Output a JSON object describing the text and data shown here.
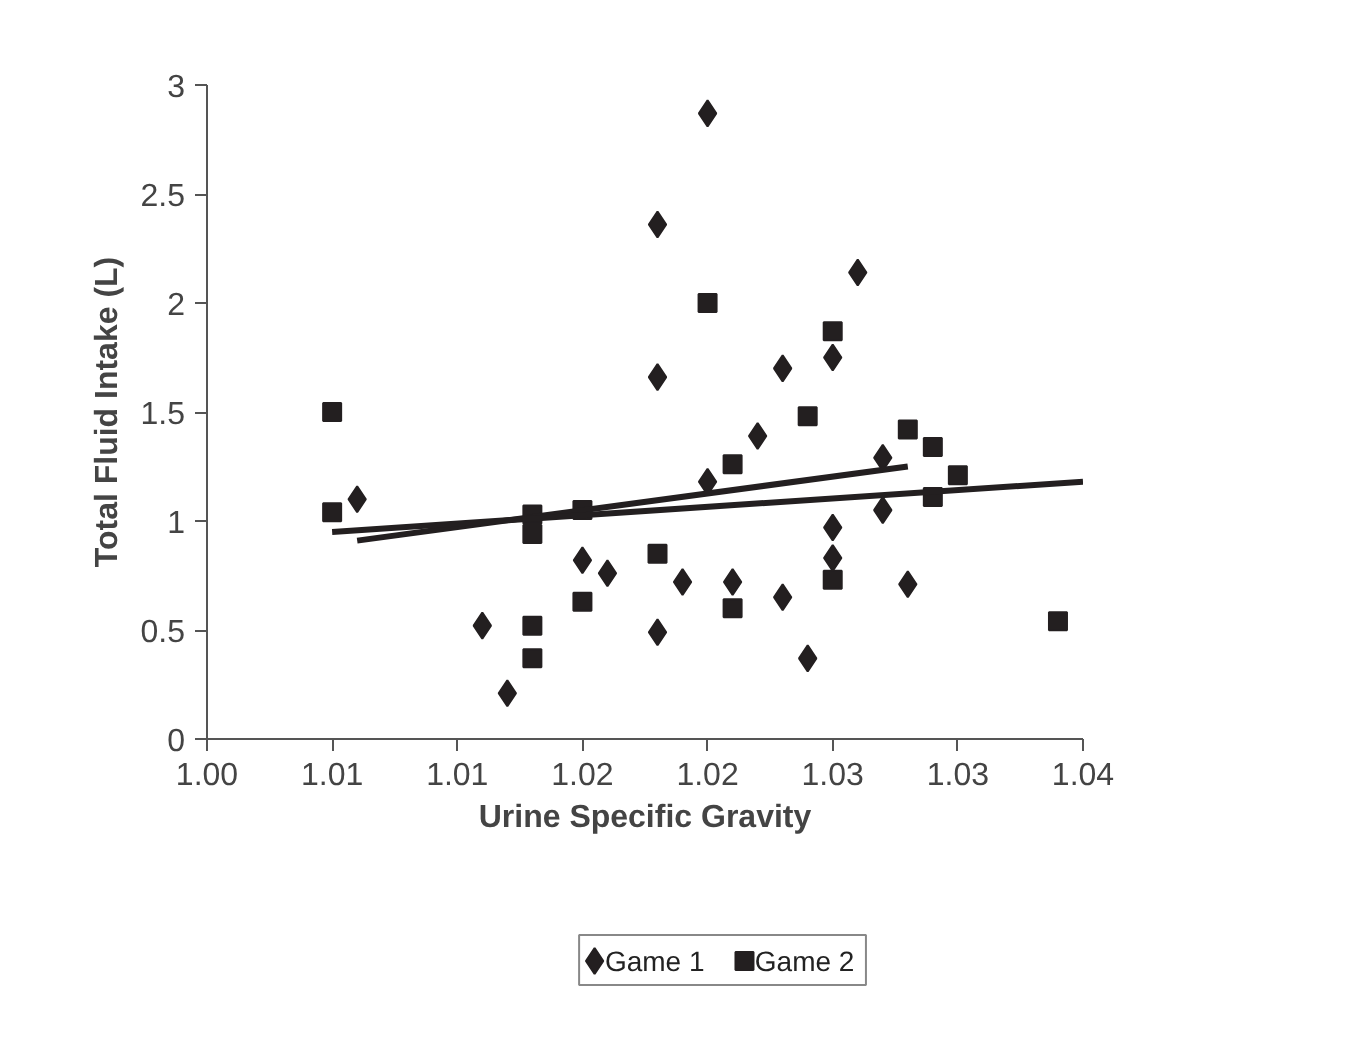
{
  "chart_data": {
    "type": "scatter",
    "xlabel": "Urine Specific Gravity",
    "ylabel": "Total Fluid Intake (L)",
    "xlim": [
      1.0,
      1.035
    ],
    "ylim": [
      0,
      3
    ],
    "xticks": [
      {
        "value": 1.0,
        "label": "1.00"
      },
      {
        "value": 1.005,
        "label": "1.01"
      },
      {
        "value": 1.01,
        "label": "1.01"
      },
      {
        "value": 1.015,
        "label": "1.02"
      },
      {
        "value": 1.02,
        "label": "1.02"
      },
      {
        "value": 1.025,
        "label": "1.03"
      },
      {
        "value": 1.03,
        "label": "1.03"
      },
      {
        "value": 1.035,
        "label": "1.04"
      }
    ],
    "yticks": [
      0,
      0.5,
      1,
      1.5,
      2,
      2.5,
      3
    ],
    "grid": false,
    "legend": "bottom",
    "series": [
      {
        "name": "Game 1",
        "type": "scatter",
        "marker": "diamond",
        "color": "#231f20",
        "x": [
          1.006,
          1.011,
          1.012,
          1.015,
          1.016,
          1.018,
          1.018,
          1.018,
          1.019,
          1.02,
          1.02,
          1.021,
          1.022,
          1.023,
          1.023,
          1.024,
          1.025,
          1.025,
          1.025,
          1.026,
          1.027,
          1.027,
          1.028
        ],
        "values": [
          1.1,
          0.52,
          0.21,
          0.82,
          0.76,
          2.36,
          1.66,
          0.49,
          0.72,
          2.87,
          1.18,
          0.72,
          1.39,
          1.7,
          0.65,
          0.37,
          1.75,
          0.97,
          0.83,
          2.14,
          1.29,
          1.05,
          0.71
        ]
      },
      {
        "name": "Game 2",
        "type": "scatter",
        "marker": "square",
        "color": "#231f20",
        "x": [
          1.005,
          1.005,
          1.013,
          1.013,
          1.013,
          1.013,
          1.015,
          1.015,
          1.018,
          1.02,
          1.021,
          1.021,
          1.024,
          1.025,
          1.025,
          1.028,
          1.029,
          1.029,
          1.03,
          1.034
        ],
        "values": [
          1.5,
          1.04,
          1.03,
          0.94,
          0.52,
          0.37,
          1.05,
          0.63,
          0.85,
          2.0,
          1.26,
          0.6,
          1.48,
          1.87,
          0.73,
          1.42,
          1.34,
          1.11,
          1.21,
          0.54
        ]
      },
      {
        "type": "line",
        "color": "#231f20",
        "x": [
          1.006,
          1.028
        ],
        "values": [
          0.91,
          1.25
        ]
      },
      {
        "type": "line",
        "color": "#231f20",
        "x": [
          1.005,
          1.035
        ],
        "values": [
          0.95,
          1.18
        ]
      }
    ]
  }
}
